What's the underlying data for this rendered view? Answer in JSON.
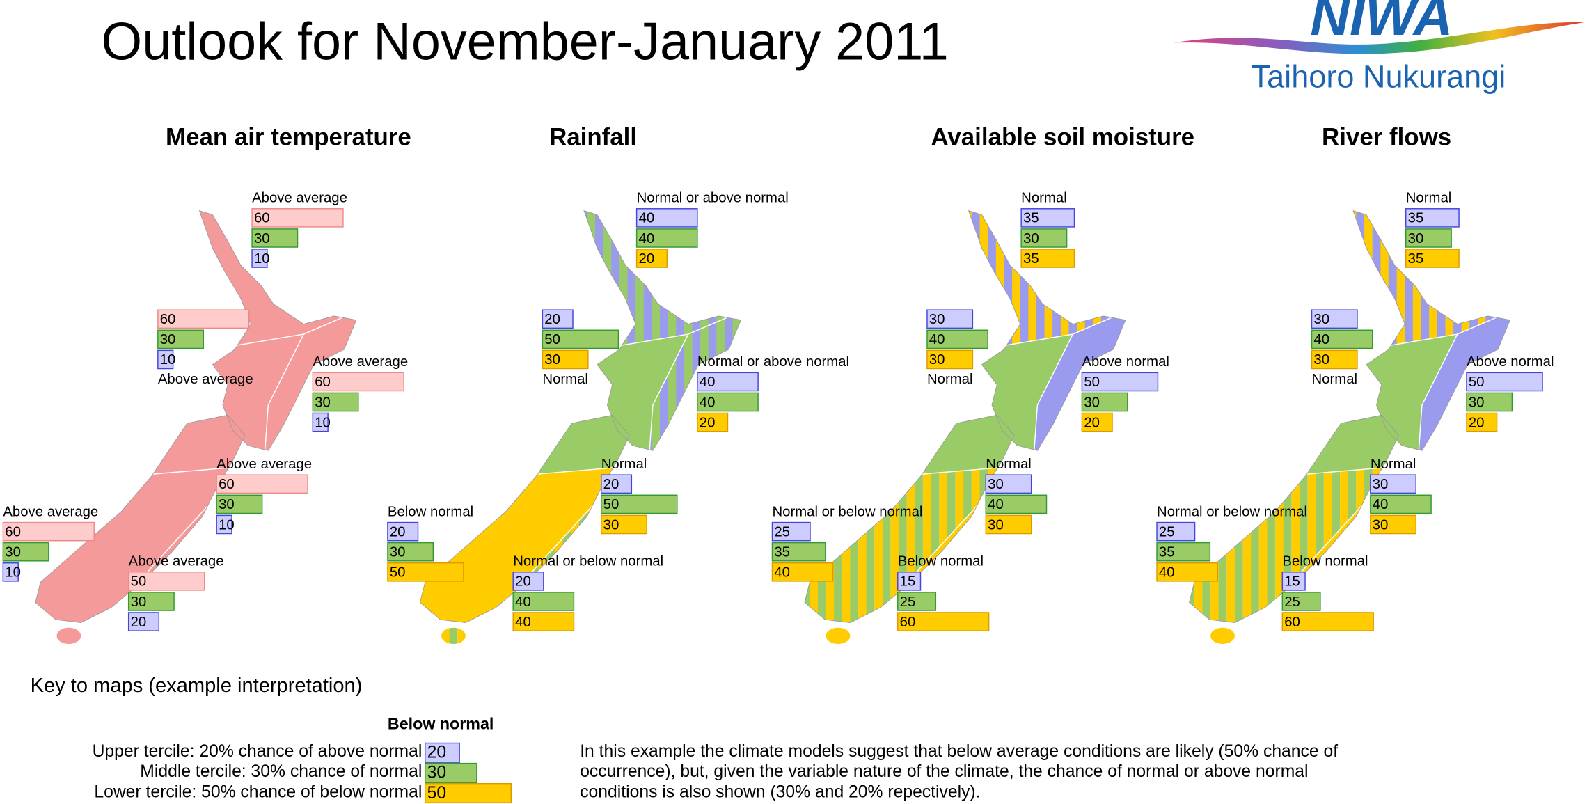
{
  "title": "Outlook for November-January 2011",
  "logo": {
    "name": "NIWA",
    "tagline": "Taihoro Nukurangi"
  },
  "maps": [
    {
      "title": "Mean air temperature",
      "colors": [
        "#ffcccc",
        "#99cc66",
        "#ccccff"
      ],
      "regions": [
        {
          "label": "Above average",
          "values": [
            60,
            30,
            10
          ]
        },
        {
          "label": "Above average",
          "values": [
            60,
            30,
            10
          ]
        },
        {
          "label": "Above average",
          "values": [
            60,
            30,
            10
          ]
        },
        {
          "label": "Above average",
          "values": [
            60,
            30,
            10
          ]
        },
        {
          "label": "Above average",
          "values": [
            60,
            30,
            10
          ]
        },
        {
          "label": "Above average",
          "values": [
            50,
            30,
            20
          ]
        }
      ]
    },
    {
      "title": "Rainfall",
      "colors": [
        "#ccccff",
        "#99cc66",
        "#ffcc00"
      ],
      "regions": [
        {
          "label": "Normal or above normal",
          "values": [
            40,
            40,
            20
          ]
        },
        {
          "label": "Normal",
          "values": [
            20,
            50,
            30
          ]
        },
        {
          "label": "Normal or above normal",
          "values": [
            40,
            40,
            20
          ]
        },
        {
          "label": "Normal",
          "values": [
            20,
            50,
            30
          ]
        },
        {
          "label": "Below normal",
          "values": [
            20,
            30,
            50
          ]
        },
        {
          "label": "Normal or below normal",
          "values": [
            20,
            40,
            40
          ]
        }
      ]
    },
    {
      "title": "Available soil moisture",
      "colors": [
        "#ccccff",
        "#99cc66",
        "#ffcc00"
      ],
      "regions": [
        {
          "label": "Normal",
          "values": [
            35,
            30,
            35
          ]
        },
        {
          "label": "Normal",
          "values": [
            30,
            40,
            30
          ]
        },
        {
          "label": "Above normal",
          "values": [
            50,
            30,
            20
          ]
        },
        {
          "label": "Normal",
          "values": [
            30,
            40,
            30
          ]
        },
        {
          "label": "Normal or below normal",
          "values": [
            25,
            35,
            40
          ]
        },
        {
          "label": "Below normal",
          "values": [
            15,
            25,
            60
          ]
        }
      ]
    },
    {
      "title": "River flows",
      "colors": [
        "#ccccff",
        "#99cc66",
        "#ffcc00"
      ],
      "regions": [
        {
          "label": "Normal",
          "values": [
            35,
            30,
            35
          ]
        },
        {
          "label": "Normal",
          "values": [
            30,
            40,
            30
          ]
        },
        {
          "label": "Above normal",
          "values": [
            50,
            30,
            20
          ]
        },
        {
          "label": "Normal",
          "values": [
            30,
            40,
            30
          ]
        },
        {
          "label": "Normal or below normal",
          "values": [
            25,
            35,
            40
          ]
        },
        {
          "label": "Below normal",
          "values": [
            15,
            25,
            60
          ]
        }
      ]
    }
  ],
  "key": {
    "heading": "Key to maps (example interpretation)",
    "example": {
      "label": "Below normal",
      "colors": [
        "#ccccff",
        "#99cc66",
        "#ffcc00"
      ],
      "rows": [
        {
          "text": "Upper tercile: 20% chance of above normal",
          "value": 20
        },
        {
          "text": "Middle tercile: 30% chance of normal",
          "value": 30
        },
        {
          "text": "Lower tercile: 50% chance of below normal",
          "value": 50
        }
      ]
    },
    "explanation": [
      "In this example the climate models suggest that below average conditions are likely (50% chance of",
      "occurrence), but, given the variable nature of the climate, the chance of normal or above normal",
      "conditions is also shown (30% and 20% repectively)."
    ]
  }
}
